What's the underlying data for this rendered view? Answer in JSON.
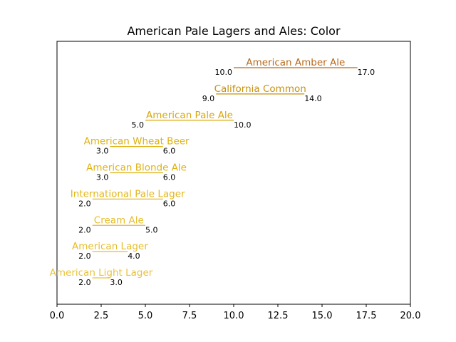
{
  "chart_data": {
    "type": "range",
    "title": "American Pale Lagers and Ales: Color",
    "xlabel": "",
    "ylabel": "",
    "xlim": [
      0,
      20
    ],
    "xticks": [
      "0.0",
      "2.5",
      "5.0",
      "7.5",
      "10.0",
      "12.5",
      "15.0",
      "17.5",
      "20.0"
    ],
    "grid": false,
    "legend": "none",
    "series": [
      {
        "name": "American Light Lager",
        "min": 2.0,
        "max": 3.0,
        "min_label": "2.0",
        "max_label": "3.0",
        "color": "#e9c23a"
      },
      {
        "name": "American Lager",
        "min": 2.0,
        "max": 4.0,
        "min_label": "2.0",
        "max_label": "4.0",
        "color": "#e6bd2a"
      },
      {
        "name": "Cream Ale",
        "min": 2.0,
        "max": 5.0,
        "min_label": "2.0",
        "max_label": "5.0",
        "color": "#e6bd2a"
      },
      {
        "name": "International Pale Lager",
        "min": 2.0,
        "max": 6.0,
        "min_label": "2.0",
        "max_label": "6.0",
        "color": "#e3b71c"
      },
      {
        "name": "American Blonde Ale",
        "min": 3.0,
        "max": 6.0,
        "min_label": "3.0",
        "max_label": "6.0",
        "color": "#dfb20f"
      },
      {
        "name": "American Wheat Beer",
        "min": 3.0,
        "max": 6.0,
        "min_label": "3.0",
        "max_label": "6.0",
        "color": "#dfb20f"
      },
      {
        "name": "American Pale Ale",
        "min": 5.0,
        "max": 10.0,
        "min_label": "5.0",
        "max_label": "10.0",
        "color": "#d9a80a"
      },
      {
        "name": "California Common",
        "min": 9.0,
        "max": 14.0,
        "min_label": "9.0",
        "max_label": "14.0",
        "color": "#c7910e"
      },
      {
        "name": "American Amber Ale",
        "min": 10.0,
        "max": 17.0,
        "min_label": "10.0",
        "max_label": "17.0",
        "color": "#b86a1c"
      }
    ]
  }
}
